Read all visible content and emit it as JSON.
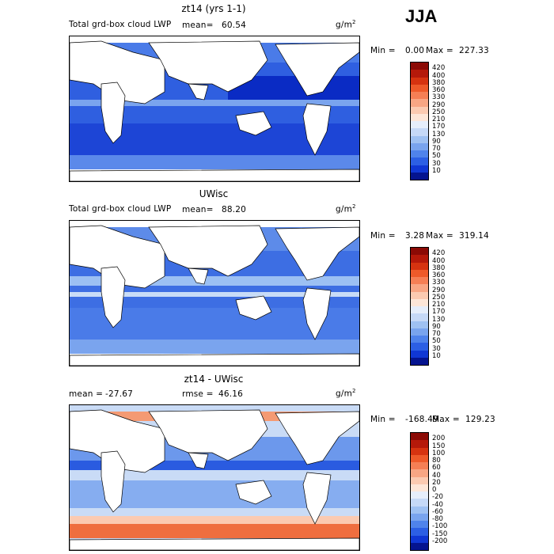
{
  "season": "JJA",
  "panels": [
    {
      "title": "zt14 (yrs 1-1)",
      "left_label": "Total grd-box cloud LWP",
      "mean_label": "mean=",
      "mean_value": "60.54",
      "units": "g/m",
      "units_sup": "2",
      "min_label": "Min =",
      "min_value": "0.00",
      "max_label": "Max =",
      "max_value": "227.33",
      "colorbar": {
        "ticks": [
          "420",
          "400",
          "380",
          "360",
          "330",
          "290",
          "250",
          "210",
          "170",
          "130",
          "90",
          "70",
          "50",
          "30",
          "10"
        ],
        "colors": [
          "#8b0a05",
          "#b5190a",
          "#d63310",
          "#ee5a2a",
          "#f57f55",
          "#f8a684",
          "#fbcab1",
          "#fde6d8",
          "#e6eefb",
          "#c6d9f7",
          "#9fc1f2",
          "#79a4ee",
          "#4f83eb",
          "#2c5fe4",
          "#1037d4",
          "#05148f"
        ]
      }
    },
    {
      "title": "UWisc",
      "left_label": "Total grd-box cloud LWP",
      "mean_label": "mean=",
      "mean_value": "88.20",
      "units": "g/m",
      "units_sup": "2",
      "min_label": "Min =",
      "min_value": "3.28",
      "max_label": "Max =",
      "max_value": "319.14",
      "colorbar": {
        "ticks": [
          "420",
          "400",
          "380",
          "360",
          "330",
          "290",
          "250",
          "210",
          "170",
          "130",
          "90",
          "70",
          "50",
          "30",
          "10"
        ],
        "colors": [
          "#8b0a05",
          "#b5190a",
          "#d63310",
          "#ee5a2a",
          "#f57f55",
          "#f8a684",
          "#fbcab1",
          "#fde6d8",
          "#e6eefb",
          "#c6d9f7",
          "#9fc1f2",
          "#79a4ee",
          "#4f83eb",
          "#2c5fe4",
          "#1037d4",
          "#05148f"
        ]
      }
    },
    {
      "title": "zt14 - UWisc",
      "left_label": "mean =",
      "mean_label": "",
      "mean_value": "-27.67",
      "rmse_label": "rmse =",
      "rmse_value": "46.16",
      "units": "g/m",
      "units_sup": "2",
      "min_label": "Min =",
      "min_value": "-168.49",
      "max_label": "Max =",
      "max_value": "129.23",
      "colorbar": {
        "ticks": [
          "200",
          "150",
          "100",
          "80",
          "60",
          "40",
          "20",
          "0",
          "-20",
          "-40",
          "-60",
          "-80",
          "-100",
          "-150",
          "-200"
        ],
        "colors": [
          "#8b0a05",
          "#b5190a",
          "#d63310",
          "#ee5a2a",
          "#f57f55",
          "#f8a684",
          "#fbcab1",
          "#fde6d8",
          "#e6eefb",
          "#c6d9f7",
          "#9fc1f2",
          "#79a4ee",
          "#4f83eb",
          "#2c5fe4",
          "#1037d4",
          "#05148f"
        ]
      }
    }
  ]
}
